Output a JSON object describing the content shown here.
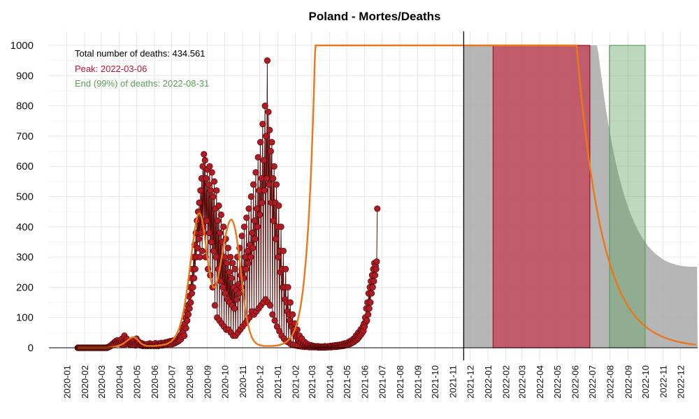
{
  "chart_data": {
    "type": "line",
    "title": "Poland - Mortes/Deaths",
    "xlabel": "",
    "ylabel": "",
    "ylim": [
      0,
      1000
    ],
    "x_range": [
      "2019-12-01",
      "2022-12-31"
    ],
    "y_ticks": [
      "0",
      "100",
      "200",
      "300",
      "400",
      "500",
      "600",
      "700",
      "800",
      "900",
      "1000"
    ],
    "x_ticks": [
      "2020-01",
      "2020-02",
      "2020-03",
      "2020-04",
      "2020-05",
      "2020-06",
      "2020-07",
      "2020-08",
      "2020-09",
      "2020-10",
      "2020-11",
      "2020-12",
      "2021-01",
      "2021-02",
      "2021-03",
      "2021-04",
      "2021-05",
      "2021-06",
      "2021-07",
      "2021-08",
      "2021-09",
      "2021-10",
      "2021-11",
      "2021-12",
      "2022-01",
      "2022-02",
      "2022-03",
      "2022-04",
      "2022-05",
      "2022-06",
      "2022-07",
      "2022-08",
      "2022-09",
      "2022-10",
      "2022-11",
      "2022-12"
    ],
    "grid": true,
    "annotations": {
      "total": "Total number of deaths: 434.561",
      "peak": "Peak: 2022-03-06",
      "end": "End (99%) of deaths: 2022-08-31"
    },
    "current_date": "2021-11-20",
    "peak_band": [
      "2022-01-10",
      "2022-06-27"
    ],
    "end_band": [
      "2022-07-31",
      "2022-10-01"
    ],
    "daily_deaths": {
      "start_date": "2020-01-20",
      "values": [
        0,
        0,
        0,
        0,
        0,
        0,
        0,
        0,
        0,
        0,
        0,
        0,
        0,
        0,
        0,
        0,
        0,
        0,
        0,
        0,
        0,
        0,
        0,
        0,
        0,
        0,
        0,
        0,
        0,
        0,
        0,
        0,
        0,
        0,
        0,
        0,
        0,
        0,
        0,
        0,
        0,
        0,
        0,
        0,
        0,
        0,
        0,
        0,
        0,
        0,
        1,
        0,
        1,
        2,
        3,
        4,
        6,
        5,
        8,
        10,
        12,
        10,
        14,
        17,
        13,
        20,
        22,
        15,
        18,
        25,
        20,
        14,
        19,
        24,
        18,
        12,
        20,
        30,
        16,
        10,
        22,
        40,
        20,
        12,
        25,
        30,
        18,
        14,
        16,
        12,
        20,
        15,
        10,
        12,
        18,
        14,
        10,
        16,
        24,
        12,
        8,
        14,
        30,
        18,
        12,
        16,
        20,
        14,
        10,
        8,
        12,
        15,
        10,
        6,
        8,
        12,
        10,
        8,
        6,
        10,
        8,
        12,
        6,
        8,
        10,
        14,
        8,
        6,
        10,
        12,
        8,
        10,
        6,
        8,
        12,
        15,
        6,
        10,
        8,
        12,
        6,
        14,
        10,
        8,
        12,
        16,
        10,
        8,
        14,
        12,
        10,
        12,
        18,
        14,
        10,
        16,
        12,
        20,
        14,
        18,
        12,
        22,
        16,
        20,
        12,
        18,
        24,
        14,
        20,
        16,
        22,
        18,
        26,
        20,
        30,
        22,
        26,
        32,
        40,
        28,
        45,
        36,
        60,
        50,
        70,
        40,
        80,
        100,
        65,
        120,
        90,
        140,
        110,
        170,
        130,
        200,
        150,
        230,
        180,
        260,
        200,
        300,
        230,
        340,
        260,
        380,
        300,
        420,
        330,
        450,
        360,
        480,
        300,
        520,
        380,
        560,
        320,
        600,
        400,
        640,
        420,
        620,
        300,
        560,
        420,
        590,
        260,
        540,
        380,
        600,
        240,
        520,
        350,
        580,
        200,
        500,
        320,
        550,
        140,
        460,
        300,
        520,
        100,
        420,
        260,
        470,
        90,
        380,
        220,
        440,
        80,
        350,
        200,
        400,
        70,
        300,
        180,
        360,
        60,
        280,
        160,
        330,
        60,
        250,
        150,
        300,
        50,
        230,
        140,
        280,
        40,
        200,
        130,
        260,
        40,
        190,
        160,
        300,
        50,
        210,
        180,
        330,
        60,
        240,
        200,
        370,
        70,
        260,
        230,
        400,
        80,
        300,
        260,
        430,
        90,
        320,
        280,
        460,
        100,
        340,
        300,
        500,
        120,
        380,
        330,
        540,
        110,
        420,
        360,
        580,
        120,
        460,
        400,
        630,
        130,
        520,
        440,
        680,
        140,
        560,
        480,
        740,
        150,
        620,
        520,
        800,
        160,
        700,
        560,
        950,
        150,
        780,
        540,
        720,
        140,
        650,
        480,
        680,
        110,
        560,
        420,
        600,
        90,
        480,
        360,
        540,
        70,
        400,
        300,
        470,
        55,
        320,
        250,
        400,
        40,
        260,
        200,
        320,
        30,
        200,
        160,
        260,
        22,
        150,
        120,
        200,
        18,
        110,
        90,
        150,
        12,
        80,
        70,
        110,
        10,
        60,
        50,
        80,
        8,
        40,
        35,
        60,
        6,
        30,
        24,
        40,
        5,
        20,
        18,
        30,
        4,
        14,
        12,
        20,
        3,
        10,
        8,
        14,
        3,
        8,
        6,
        10,
        2,
        6,
        5,
        8,
        2,
        5,
        4,
        6,
        2,
        4,
        3,
        5,
        2,
        4,
        3,
        5,
        1,
        3,
        2,
        4,
        1,
        3,
        2,
        4,
        1,
        3,
        2,
        5,
        1,
        3,
        2,
        4,
        2,
        5,
        2,
        4,
        3,
        6,
        2,
        5,
        3,
        7,
        3,
        6,
        4,
        8,
        3,
        7,
        4,
        9,
        4,
        8,
        5,
        10,
        5,
        9,
        6,
        12,
        6,
        10,
        7,
        14,
        8,
        12,
        9,
        16,
        10,
        14,
        12,
        20,
        12,
        18,
        14,
        24,
        16,
        22,
        18,
        30,
        20,
        28,
        24,
        40,
        26,
        36,
        30,
        50,
        34,
        46,
        40,
        60,
        44,
        56,
        50,
        70,
        56,
        80,
        70,
        100,
        85,
        130,
        90,
        150,
        110,
        180,
        130,
        200,
        150,
        220,
        180,
        240,
        200,
        260,
        220,
        280,
        240,
        270,
        260,
        285,
        460
      ]
    },
    "fitted_curve": {
      "start_date": "2020-01-20",
      "values": [
        0,
        0,
        0,
        0,
        0,
        0,
        0,
        0,
        0,
        0,
        0,
        0,
        0,
        0,
        0,
        0,
        0,
        0,
        0,
        0,
        0,
        0,
        0,
        0,
        0,
        0,
        0,
        0,
        0,
        0,
        0,
        0,
        0,
        0,
        0,
        0,
        0,
        0,
        0,
        0,
        0,
        0,
        0,
        0,
        0,
        0,
        0,
        0,
        0,
        0,
        0,
        0,
        0,
        0,
        1,
        1,
        1,
        1,
        1,
        2,
        2,
        2,
        3,
        3,
        3,
        4,
        4,
        5,
        5,
        6,
        6,
        7,
        8,
        8,
        9,
        10,
        11,
        12,
        13,
        14,
        15,
        16,
        18,
        19,
        21,
        22,
        24,
        25,
        27,
        28,
        30,
        31,
        32,
        33,
        34,
        35,
        35,
        35,
        35,
        34,
        33,
        32,
        30,
        28,
        26,
        24,
        22,
        20,
        18,
        16,
        14,
        13,
        12,
        11,
        10,
        9,
        8,
        8,
        7,
        7,
        6,
        6,
        6,
        6,
        6,
        6,
        6,
        6,
        6,
        6,
        6,
        6,
        6,
        6,
        6,
        6,
        7,
        7,
        7,
        7,
        7,
        8,
        8,
        8,
        8,
        9,
        9,
        9,
        10,
        10,
        10,
        11,
        11,
        12,
        12,
        13,
        14,
        15,
        16,
        17,
        18,
        19,
        20,
        22,
        24,
        26,
        28,
        30,
        33,
        36,
        39,
        42,
        46,
        50,
        54,
        59,
        64,
        70,
        76,
        83,
        90,
        98,
        106,
        115,
        125,
        135,
        146,
        158,
        170,
        183,
        196,
        210,
        224,
        239,
        254,
        270,
        285,
        300,
        316,
        331,
        346,
        360,
        374,
        387,
        399,
        410,
        420,
        429,
        436,
        441,
        444,
        445,
        444,
        441,
        436,
        429,
        420,
        410,
        399,
        387,
        374,
        360,
        346,
        331,
        316,
        301,
        287,
        273,
        260,
        248,
        237,
        227,
        218,
        211,
        205,
        201,
        199,
        199,
        201,
        204,
        209,
        215,
        222,
        230,
        239,
        248,
        258,
        268,
        279,
        290,
        301,
        312,
        323,
        334,
        345,
        355,
        365,
        374,
        383,
        391,
        399,
        405,
        411,
        416,
        420,
        423,
        424,
        424,
        422,
        419,
        415,
        409,
        402,
        394,
        385,
        374,
        362,
        349,
        335,
        320,
        304,
        288,
        271,
        254,
        237,
        220,
        203,
        187,
        171,
        156,
        142,
        129,
        116,
        104,
        93,
        83,
        74,
        66,
        59,
        52,
        46,
        41,
        36,
        32,
        28,
        25,
        22,
        20,
        18,
        16,
        14,
        13,
        12,
        11,
        10,
        9,
        9,
        8,
        8,
        7,
        7,
        7,
        6,
        6,
        6,
        6,
        6,
        6,
        6,
        6,
        6,
        6,
        6,
        6,
        6,
        6,
        6,
        6,
        6,
        6,
        6,
        7,
        7,
        7,
        7,
        7,
        8,
        8,
        8,
        9,
        9,
        10,
        10,
        11,
        11,
        12,
        13,
        14,
        15,
        16,
        17,
        18,
        19,
        21,
        22,
        24,
        26,
        28,
        30,
        32,
        35,
        38,
        41,
        44,
        48,
        52,
        56,
        61,
        66,
        72,
        78,
        85,
        92,
        100,
        109,
        118,
        128,
        139,
        151,
        164,
        178,
        193,
        210,
        228,
        248,
        268,
        290,
        314,
        340,
        368,
        398,
        430,
        465,
        502,
        542,
        585,
        630,
        680,
        733,
        790,
        850,
        914,
        980,
        1000
      ]
    }
  }
}
